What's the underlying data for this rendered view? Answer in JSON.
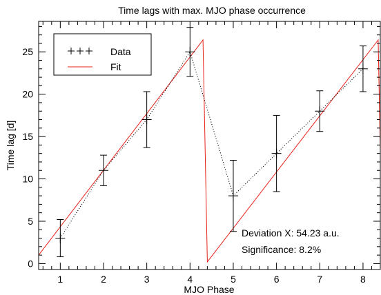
{
  "chart_data": {
    "type": "line",
    "title": "Time lags with max. MJO phase occurrence",
    "xlabel": "MJO Phase",
    "ylabel": "Time lag  [d]",
    "xlim": [
      0.5,
      8.4
    ],
    "ylim": [
      -0.7,
      28.6
    ],
    "x_ticks": [
      1,
      2,
      3,
      4,
      5,
      6,
      7,
      8
    ],
    "y_ticks": [
      0,
      5,
      10,
      15,
      20,
      25
    ],
    "x_minor_step": 0.2,
    "y_minor_step": 1,
    "grid": false,
    "legend": {
      "placement": "top-left",
      "entries": [
        {
          "label": "Data",
          "style": "+++"
        },
        {
          "label": "Fit",
          "style": "red-line"
        }
      ]
    },
    "series": [
      {
        "name": "Data",
        "style": "dotted-with-errorbars",
        "color": "#000000",
        "x": [
          1,
          2,
          3,
          4,
          5,
          6,
          7,
          8
        ],
        "y": [
          3,
          11,
          17,
          25,
          8,
          13,
          18,
          23
        ],
        "err": [
          2.2,
          1.8,
          3.3,
          2.9,
          4.2,
          4.5,
          2.4,
          2.7
        ]
      },
      {
        "name": "Fit",
        "style": "solid",
        "color": "#e8201a",
        "x": [
          0.5,
          4.3,
          4.4,
          8.35,
          8.45
        ],
        "y": [
          1.0,
          26.4,
          0.2,
          26.4,
          0.2
        ]
      }
    ],
    "annotations": [
      "Deviation X: 54.23 a.u.",
      "Significance: 8.2%"
    ]
  }
}
